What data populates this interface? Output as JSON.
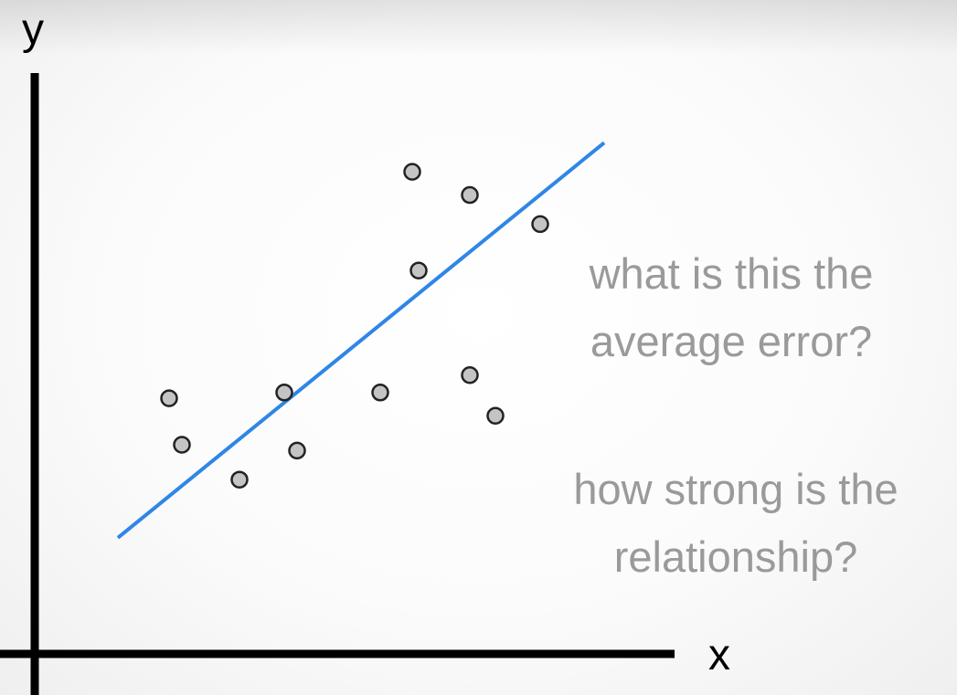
{
  "chart_data": {
    "type": "scatter",
    "xlabel": "x",
    "ylabel": "y",
    "xlim": [
      0,
      100
    ],
    "ylim": [
      0,
      100
    ],
    "grid": false,
    "points": [
      {
        "x": 21,
        "y": 44
      },
      {
        "x": 23,
        "y": 36
      },
      {
        "x": 32,
        "y": 30
      },
      {
        "x": 39,
        "y": 45
      },
      {
        "x": 41,
        "y": 35
      },
      {
        "x": 54,
        "y": 45
      },
      {
        "x": 59,
        "y": 83
      },
      {
        "x": 60,
        "y": 66
      },
      {
        "x": 68,
        "y": 79
      },
      {
        "x": 68,
        "y": 48
      },
      {
        "x": 72,
        "y": 41
      },
      {
        "x": 79,
        "y": 74
      }
    ],
    "trend_line": {
      "x": [
        13,
        89
      ],
      "y": [
        20,
        88
      ]
    },
    "colors": {
      "points_fill": "#c4c4c4",
      "points_stroke": "#222222",
      "trend_line": "#2f86e6",
      "axes": "#000000"
    }
  },
  "annotations": {
    "question_1": [
      "what is this the",
      "average error?"
    ],
    "question_2": [
      "how strong is the",
      "relationship?"
    ],
    "color": "#9a9a9a"
  }
}
